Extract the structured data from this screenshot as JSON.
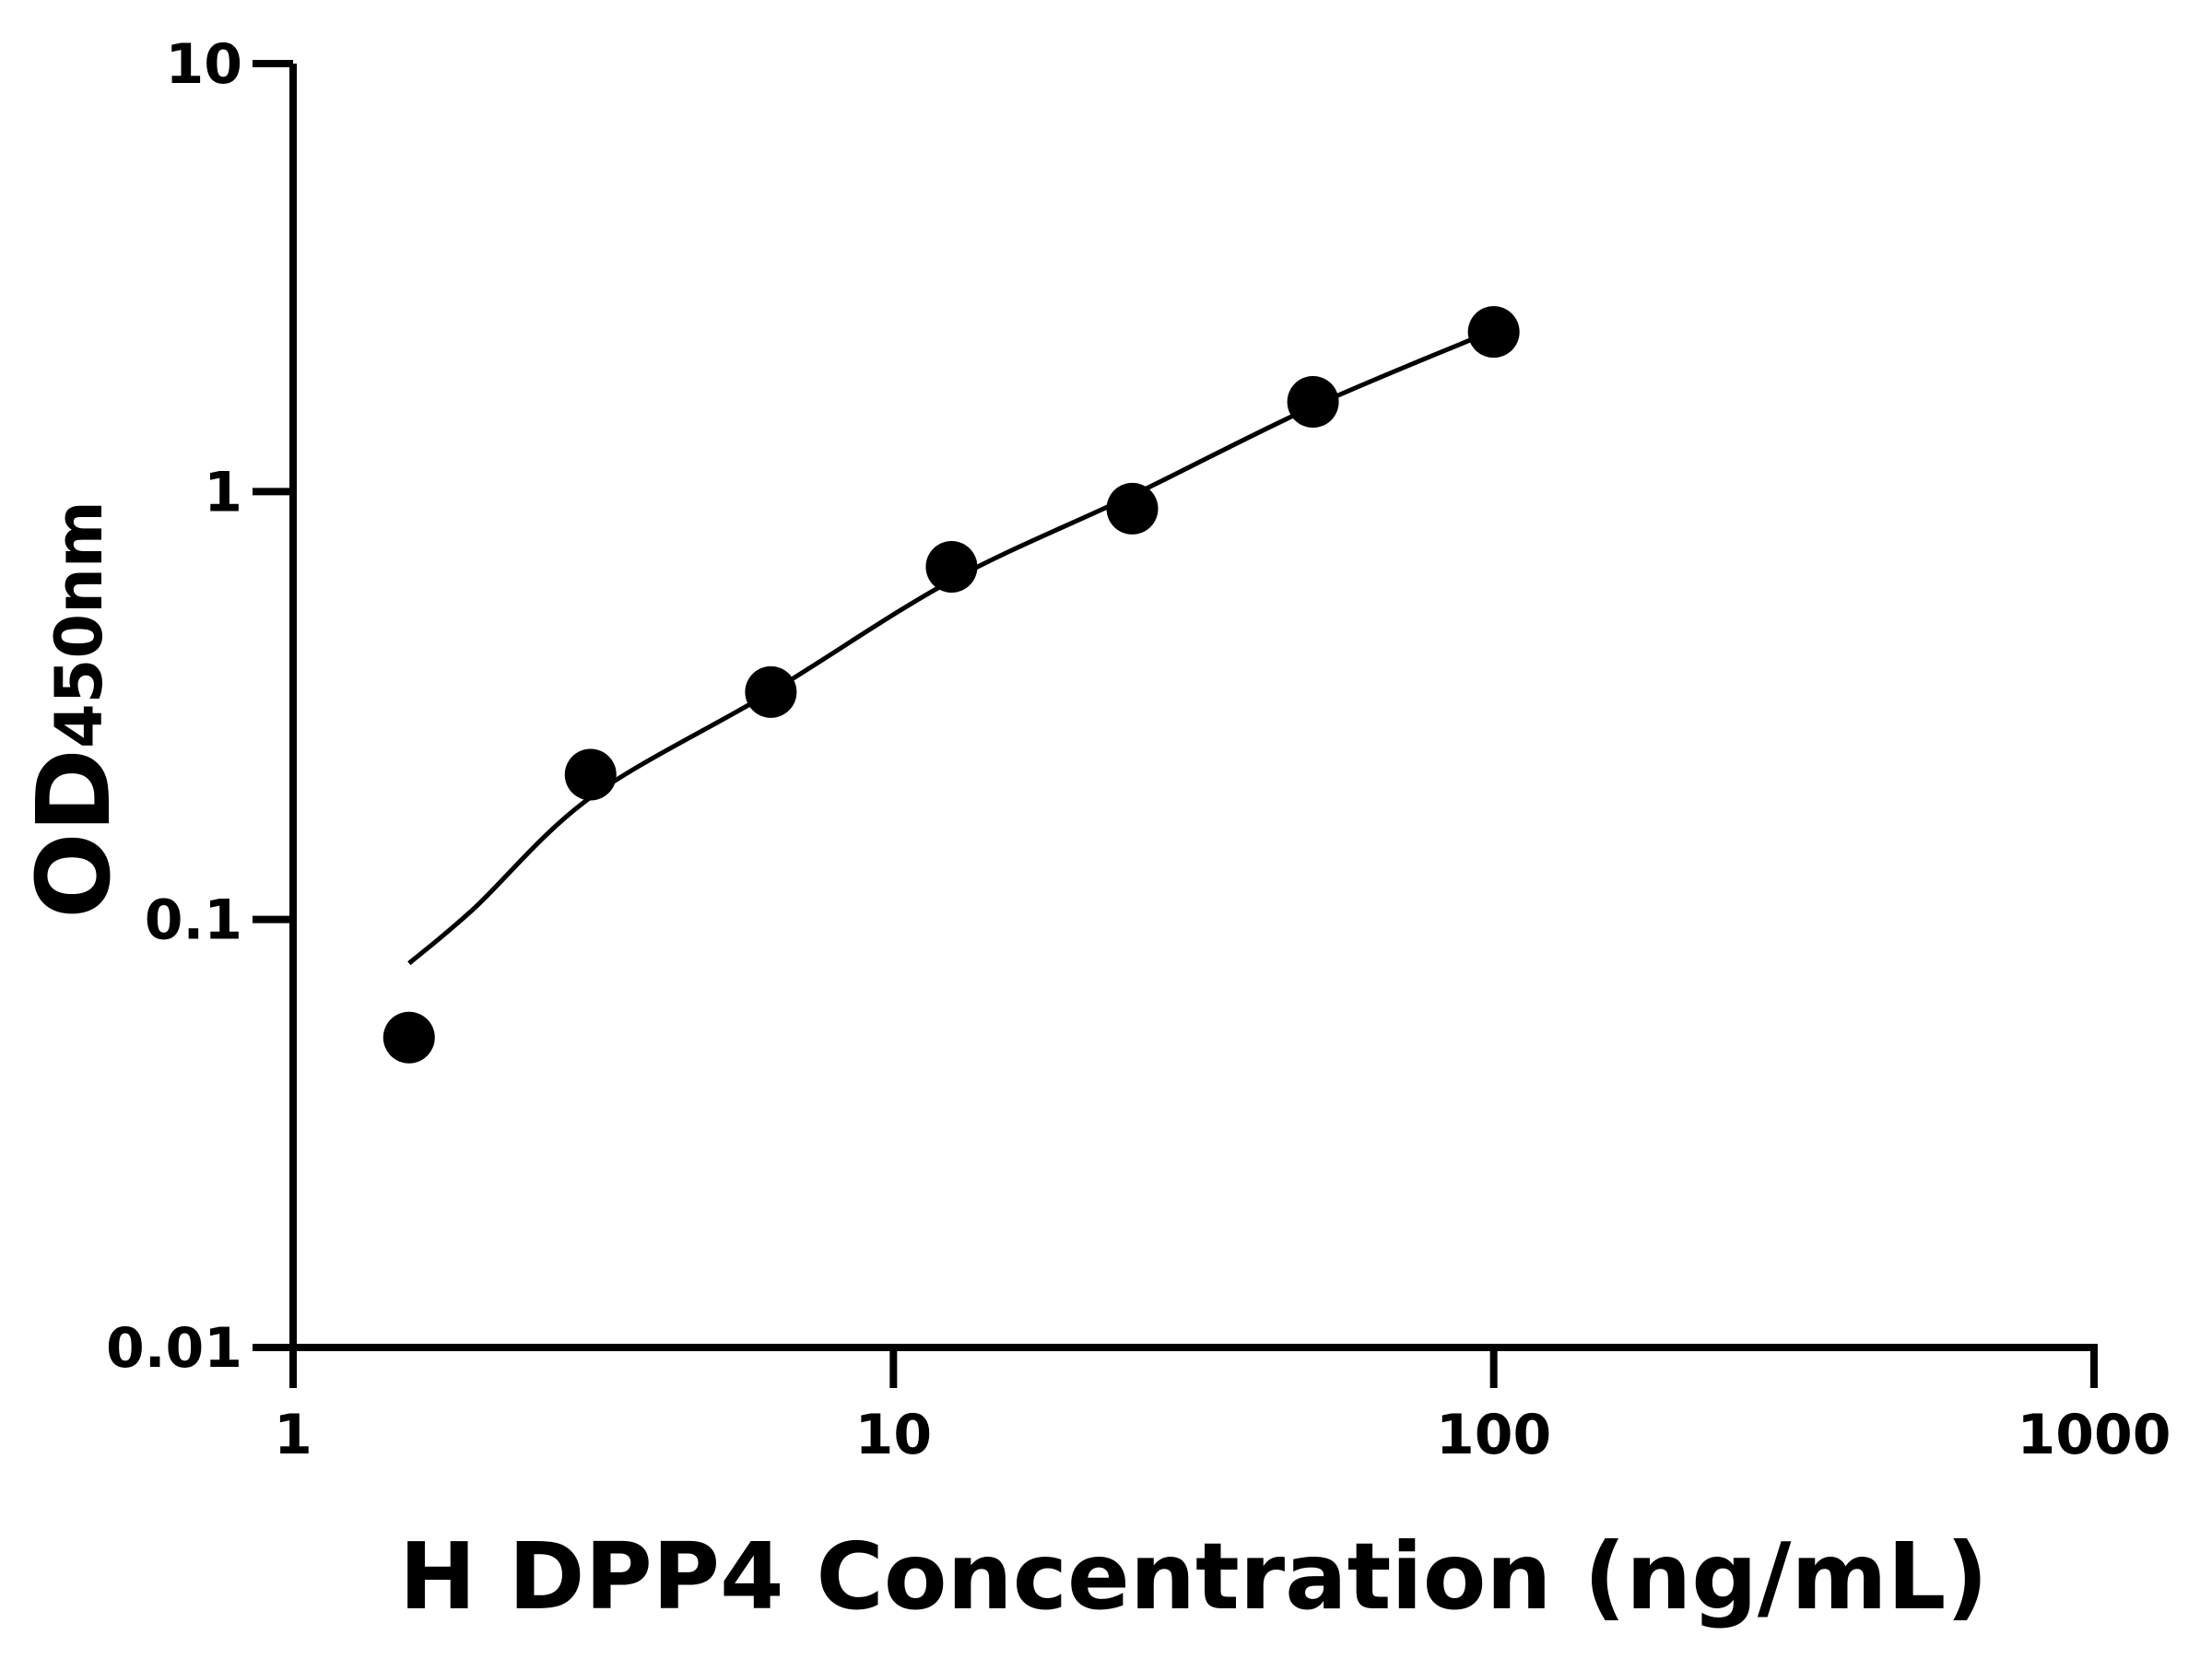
{
  "chart_data": {
    "type": "scatter",
    "title": "",
    "xlabel": "H DPP4 Concentration (ng/mL)",
    "ylabel_main": "OD",
    "ylabel_sub": "450nm",
    "xscale": "log",
    "yscale": "log",
    "xlim": [
      1,
      1000
    ],
    "ylim": [
      0.01,
      10
    ],
    "xticks": [
      "1",
      "10",
      "100",
      "1000"
    ],
    "xtick_values": [
      1,
      10,
      100,
      1000
    ],
    "yticks": [
      "0.01",
      "0.1",
      "1",
      "10"
    ],
    "ytick_values": [
      0.01,
      0.1,
      1,
      10
    ],
    "grid": false,
    "points": {
      "x": [
        1.56,
        3.13,
        6.25,
        12.5,
        25,
        50,
        100
      ],
      "y": [
        0.053,
        0.218,
        0.34,
        0.667,
        0.912,
        1.62,
        2.36
      ]
    },
    "fit_curve": {
      "x": [
        1.56,
        2,
        3.13,
        6.25,
        12.5,
        25,
        50,
        100
      ],
      "y": [
        0.079,
        0.106,
        0.193,
        0.34,
        0.62,
        0.98,
        1.58,
        2.38
      ]
    },
    "colors": {
      "points": "#000000",
      "curve": "#000000",
      "axes": "#000000"
    }
  }
}
